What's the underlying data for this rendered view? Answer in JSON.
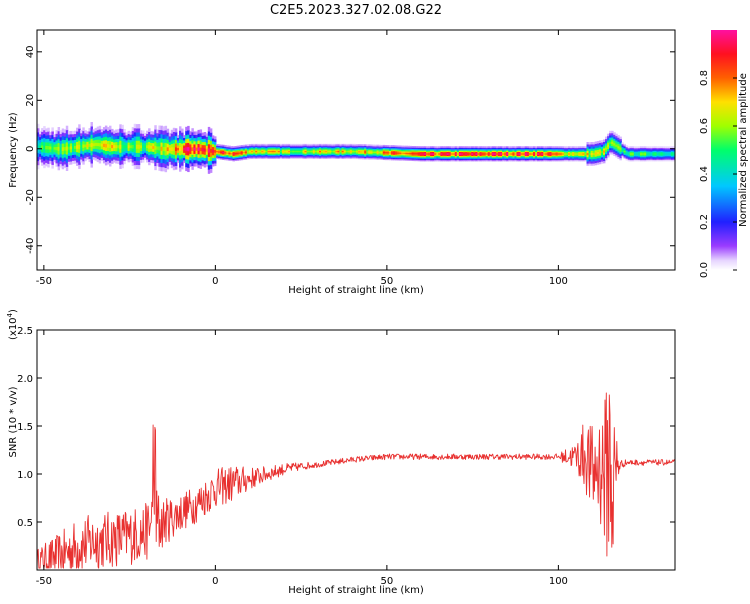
{
  "title": "C2E5.2023.327.02.08.G22",
  "colors": {
    "snr_line": "#e8302f",
    "axis": "#000000",
    "background": "#ffffff"
  },
  "chart_data": [
    {
      "type": "heatmap",
      "xlabel": "Height of straight line (km)",
      "ylabel": "Frequency (Hz)",
      "xlim": [
        -52,
        134
      ],
      "ylim": [
        -50,
        49
      ],
      "xticks": [
        -50,
        0,
        50,
        100
      ],
      "yticks": [
        40,
        20,
        0,
        -20,
        -40
      ],
      "colorbar": {
        "label": "Normalized spectral amplitude",
        "range": [
          0,
          1
        ],
        "ticks": [
          0.0,
          0.2,
          0.4,
          0.6,
          0.8
        ],
        "colormap": "rainbow (white-purple-blue-cyan-green-yellow-red-magenta)"
      },
      "ridge": {
        "description": "Narrow high-amplitude band near 0 Hz, noisy/broad below 0 km, drifting to about -2 Hz above 20 km, with a spike near 115 km",
        "x": [
          -52,
          -45,
          -40,
          -35,
          -30,
          -25,
          -20,
          -15,
          -10,
          -5,
          0,
          5,
          10,
          20,
          40,
          60,
          80,
          95,
          100,
          105,
          110,
          113,
          115,
          120,
          130,
          134
        ],
        "y": [
          1,
          0,
          1,
          2,
          1,
          1,
          1,
          0,
          0,
          0,
          -1,
          -2,
          -1,
          -1,
          -1,
          -2,
          -2,
          -2,
          -2,
          -2,
          -2,
          -1,
          3,
          -2,
          -2,
          -2
        ],
        "peak_amplitude": [
          0.55,
          0.6,
          0.65,
          0.7,
          0.7,
          0.6,
          0.65,
          0.8,
          0.9,
          0.95,
          0.85,
          0.95,
          0.8,
          0.7,
          0.75,
          0.9,
          0.97,
          0.97,
          0.8,
          0.75,
          0.7,
          0.7,
          0.6,
          0.55,
          0.55,
          0.5
        ]
      }
    },
    {
      "type": "line",
      "xlabel": "Height of straight line (km)",
      "ylabel": "SNR (10 * v/v)",
      "yscale_label": "(x10",
      "yscale_exponent": "4",
      "yscale_suffix": ")",
      "xlim": [
        -52,
        134
      ],
      "ylim": [
        0,
        2.5
      ],
      "xticks": [
        -50,
        0,
        50,
        100
      ],
      "yticks": [
        0.5,
        1.0,
        1.5,
        2.0,
        2.5
      ],
      "series": [
        {
          "x": [
            -52,
            -45,
            -40,
            -35,
            -30,
            -25,
            -20,
            -18,
            -15,
            -10,
            -5,
            0,
            5,
            10,
            15,
            20,
            25,
            30,
            40,
            50,
            60,
            70,
            80,
            90,
            95,
            100,
            105,
            108,
            110,
            112,
            114,
            115,
            116,
            117,
            118,
            120,
            125,
            130,
            134
          ],
          "values": [
            0.1,
            0.15,
            0.25,
            0.3,
            0.32,
            0.35,
            0.4,
            0.45,
            0.5,
            0.6,
            0.7,
            0.85,
            0.9,
            0.95,
            1.0,
            1.05,
            1.08,
            1.1,
            1.15,
            1.18,
            1.18,
            1.18,
            1.18,
            1.18,
            1.18,
            1.18,
            1.18,
            1.2,
            1.0,
            1.1,
            1.0,
            1.2,
            0.8,
            1.1,
            1.1,
            1.12,
            1.12,
            1.12,
            1.12
          ],
          "noise_amplitude": [
            0.12,
            0.25,
            0.3,
            0.3,
            0.3,
            0.3,
            0.3,
            0.5,
            0.25,
            0.2,
            0.2,
            0.2,
            0.2,
            0.12,
            0.08,
            0.06,
            0.04,
            0.03,
            0.03,
            0.03,
            0.03,
            0.03,
            0.03,
            0.03,
            0.03,
            0.03,
            0.15,
            0.4,
            0.5,
            0.6,
            0.9,
            1.2,
            1.0,
            0.4,
            0.05,
            0.03,
            0.03,
            0.03,
            0.03
          ]
        }
      ]
    }
  ]
}
